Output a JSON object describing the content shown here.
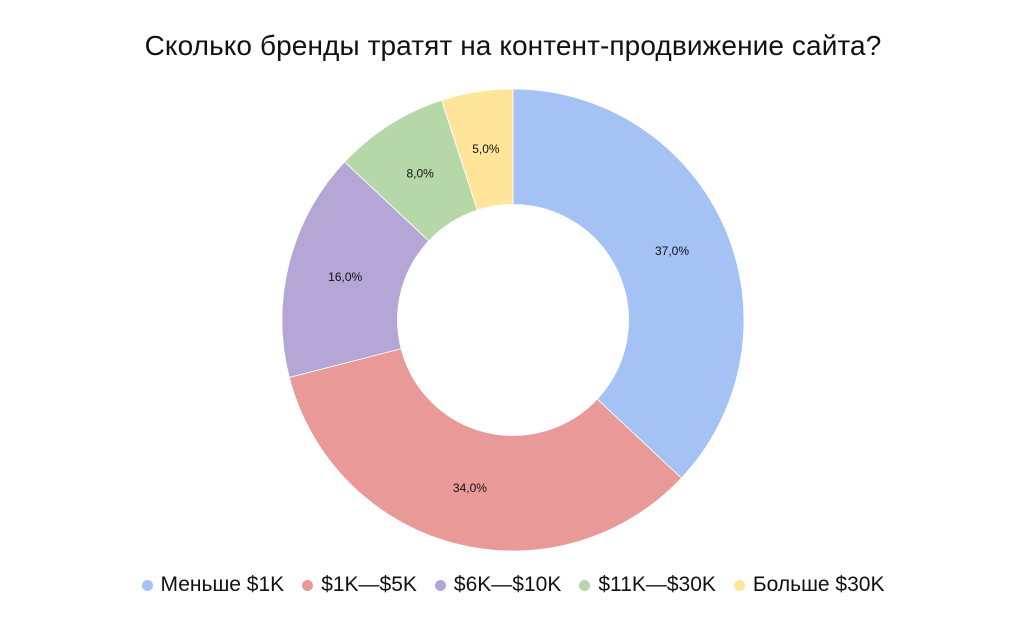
{
  "chart_data": {
    "type": "pie",
    "variant": "donut",
    "title": "Сколько бренды тратят на контент-продвижение сайта?",
    "categories": [
      "Меньше $1K",
      "$1K—$5K",
      "$6K—$10K",
      "$11K—$30K",
      "Больше $30K"
    ],
    "values": [
      37.0,
      34.0,
      16.0,
      8.0,
      5.0
    ],
    "labels": [
      "37,0%",
      "34,0%",
      "16,0%",
      "8,0%",
      "5,0%"
    ],
    "colors": [
      "#a4c2f4",
      "#ea9999",
      "#b4a7d6",
      "#b6d7a8",
      "#ffe599"
    ],
    "start_angle": "top",
    "direction": "clockwise",
    "legend_position": "bottom"
  },
  "legend": [
    {
      "label": "Меньше $1K",
      "color": "#a4c2f4"
    },
    {
      "label": "$1K—$5K",
      "color": "#ea9999"
    },
    {
      "label": "$6K—$10K",
      "color": "#b4a7d6"
    },
    {
      "label": "$11K—$30K",
      "color": "#b6d7a8"
    },
    {
      "label": "Больше $30K",
      "color": "#ffe599"
    }
  ]
}
